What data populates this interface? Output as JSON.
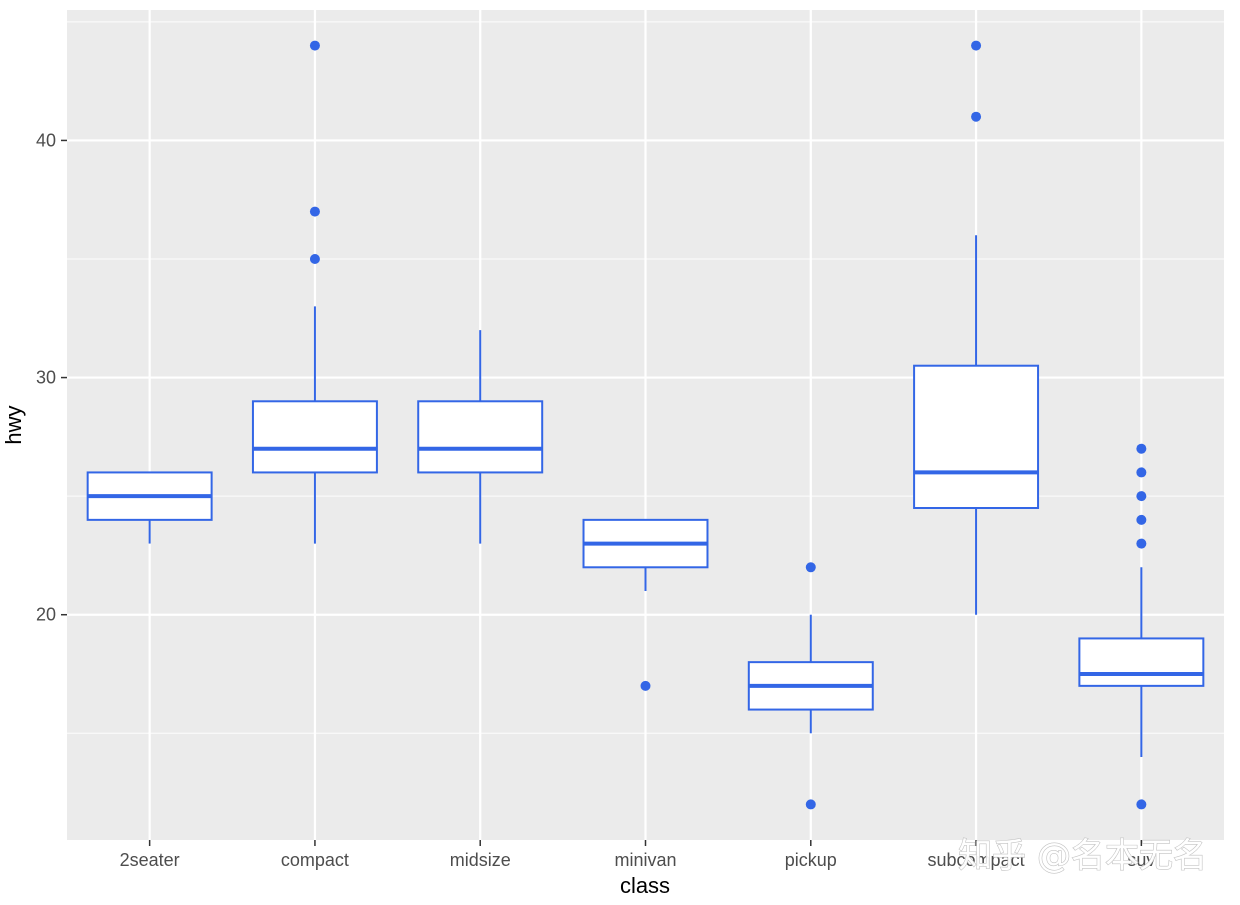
{
  "chart_data": {
    "type": "box",
    "xlabel": "class",
    "ylabel": "hwy",
    "categories": [
      "2seater",
      "compact",
      "midsize",
      "minivan",
      "pickup",
      "subcompact",
      "suv"
    ],
    "ylim": [
      10.5,
      45.5
    ],
    "yticks": [
      20,
      30,
      40
    ],
    "ytick_labels": [
      "20",
      "30",
      "40"
    ],
    "grid": true,
    "box_color": "#3366e6",
    "panel_background": "#ebebeb",
    "boxes": [
      {
        "category": "2seater",
        "whisker_low": 23,
        "q1": 24,
        "median": 25,
        "q3": 26,
        "whisker_high": 26,
        "outliers": []
      },
      {
        "category": "compact",
        "whisker_low": 23,
        "q1": 26,
        "median": 27,
        "q3": 29,
        "whisker_high": 33,
        "outliers": [
          35,
          37,
          44
        ]
      },
      {
        "category": "midsize",
        "whisker_low": 23,
        "q1": 26,
        "median": 27,
        "q3": 29,
        "whisker_high": 32,
        "outliers": []
      },
      {
        "category": "minivan",
        "whisker_low": 21,
        "q1": 22,
        "median": 23,
        "q3": 24,
        "whisker_high": 24,
        "outliers": [
          17
        ]
      },
      {
        "category": "pickup",
        "whisker_low": 15,
        "q1": 16,
        "median": 17,
        "q3": 18,
        "whisker_high": 20,
        "outliers": [
          12,
          22
        ]
      },
      {
        "category": "subcompact",
        "whisker_low": 20,
        "q1": 24.5,
        "median": 26,
        "q3": 30.5,
        "whisker_high": 36,
        "outliers": [
          41,
          44
        ]
      },
      {
        "category": "suv",
        "whisker_low": 14,
        "q1": 17,
        "median": 17.5,
        "q3": 19,
        "whisker_high": 22,
        "outliers": [
          12,
          23,
          24,
          25,
          26,
          27
        ]
      }
    ]
  },
  "watermark": "知乎 @名本无名"
}
